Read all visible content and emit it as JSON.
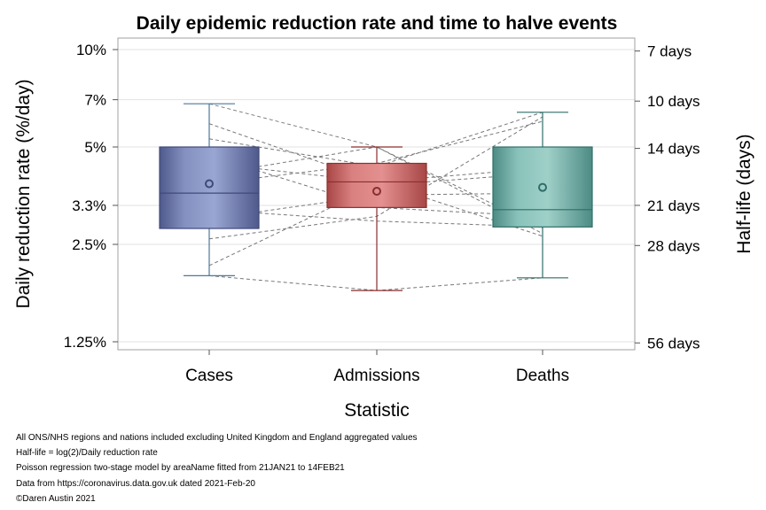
{
  "chart_data": {
    "type": "box",
    "title": "Daily epidemic reduction rate and time to halve events",
    "xlabel": "Statistic",
    "ylabel": "Daily reduction rate (%/day)",
    "y2label": "Half-life (days)",
    "y_scale": "log",
    "ylim": [
      1.2,
      10.5
    ],
    "y_ticks": [
      {
        "value": 10,
        "label": "10%"
      },
      {
        "value": 7,
        "label": "7%"
      },
      {
        "value": 5,
        "label": "5%"
      },
      {
        "value": 3.3,
        "label": "3.3%"
      },
      {
        "value": 2.5,
        "label": "2.5%"
      },
      {
        "value": 1.25,
        "label": "1.25%"
      }
    ],
    "y2_ticks": [
      {
        "value": 9.9,
        "label": "7 days"
      },
      {
        "value": 6.93,
        "label": "10 days"
      },
      {
        "value": 4.95,
        "label": "14 days"
      },
      {
        "value": 3.3,
        "label": "21 days"
      },
      {
        "value": 2.48,
        "label": "28 days"
      },
      {
        "value": 1.24,
        "label": "56 days"
      }
    ],
    "grid": true,
    "categories": [
      "Cases",
      "Admissions",
      "Deaths"
    ],
    "boxes": [
      {
        "category": "Cases",
        "min": 2.0,
        "q1": 2.8,
        "median": 3.6,
        "mean": 3.85,
        "q3": 5.0,
        "max": 6.8,
        "fill": "#8490bf",
        "edge": "#3f4a7a",
        "whisker": "#4e7898"
      },
      {
        "category": "Admissions",
        "min": 1.8,
        "q1": 3.25,
        "median": 3.9,
        "mean": 3.65,
        "q3": 4.45,
        "max": 5.0,
        "fill": "#cf6f6f",
        "edge": "#8a2f2f",
        "whisker": "#8a2f2f"
      },
      {
        "category": "Deaths",
        "min": 1.97,
        "q1": 2.83,
        "median": 3.2,
        "mean": 3.75,
        "q3": 5.0,
        "max": 6.4,
        "fill": "#7fb8b0",
        "edge": "#2f6e68",
        "whisker": "#2f6e68"
      }
    ],
    "connections": [
      [
        6.8,
        5.0,
        2.7
      ],
      [
        5.9,
        3.9,
        2.65
      ],
      [
        5.3,
        4.35,
        6.4
      ],
      [
        4.7,
        3.25,
        3.05
      ],
      [
        4.45,
        3.9,
        4.3
      ],
      [
        4.1,
        5.0,
        2.8
      ],
      [
        3.85,
        4.45,
        6.0
      ],
      [
        3.2,
        2.95,
        2.83
      ],
      [
        3.0,
        3.55,
        3.6
      ],
      [
        2.6,
        3.05,
        6.2
      ],
      [
        2.15,
        3.8,
        4.15
      ],
      [
        2.0,
        1.8,
        1.97
      ]
    ]
  },
  "footnotes": [
    "All ONS/NHS regions and nations included excluding United Kingdom and England aggregated values",
    "Half-life = log(2)/Daily reduction rate",
    "Poisson regression two-stage model by areaName fitted from 21JAN21 to 14FEB21",
    "Data from https://coronavirus.data.gov.uk dated 2021-Feb-20",
    "©Daren Austin 2021"
  ]
}
